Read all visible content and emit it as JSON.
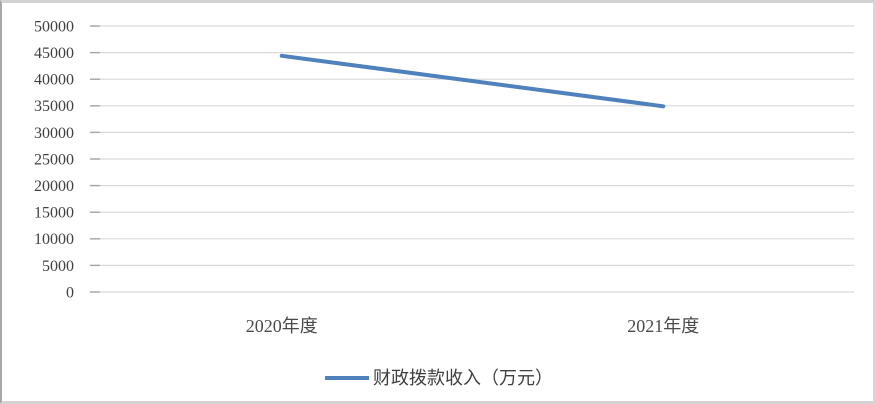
{
  "chart_data": {
    "type": "line",
    "title": "",
    "xlabel": "",
    "ylabel": "",
    "categories": [
      "2020年度",
      "2021年度"
    ],
    "series": [
      {
        "name": "财政拨款收入（万元）",
        "values": [
          44400,
          34900
        ],
        "color": "#4F81BD"
      }
    ],
    "ylim": [
      0,
      50000
    ],
    "ytick_step": 5000,
    "ytick_labels": [
      "0",
      "5000",
      "10000",
      "15000",
      "20000",
      "25000",
      "30000",
      "35000",
      "40000",
      "45000",
      "50000"
    ],
    "grid": "horizontal",
    "legend_position": "bottom-center",
    "colors": {
      "gridline": "#d9d9d9",
      "tick": "#a6a6a6",
      "axis_text": "#3f3f3f",
      "category_text": "#4a4a4a",
      "legend_text": "#3f3f3f",
      "background": "#ffffff",
      "frame_border": "#d2d2d2"
    }
  }
}
